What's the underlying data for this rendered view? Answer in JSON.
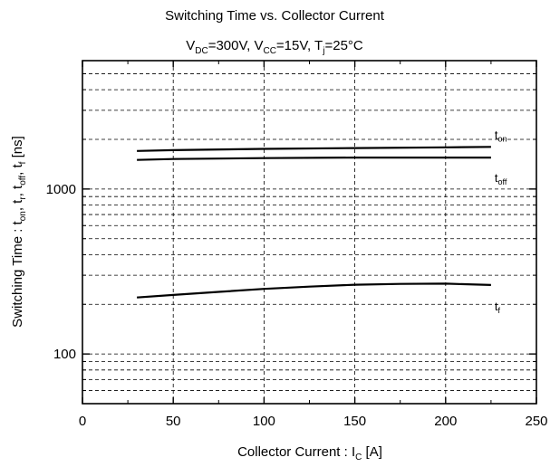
{
  "chart_data": {
    "type": "line",
    "title_lines": [
      [
        {
          "t": "Switching Time vs. Collector Current"
        }
      ],
      [
        {
          "t": "V"
        },
        {
          "t": "DC",
          "sub": true
        },
        {
          "t": "=300V, V"
        },
        {
          "t": "CC",
          "sub": true
        },
        {
          "t": "=15V, T"
        },
        {
          "t": "j",
          "sub": true
        },
        {
          "t": "=25°C"
        }
      ]
    ],
    "xlabel": [
      {
        "t": "Collector Current  :  I"
      },
      {
        "t": "C",
        "sub": true
      },
      {
        "t": "  [A]"
      }
    ],
    "ylabel": [
      {
        "t": "Switching Time :  t"
      },
      {
        "t": "on",
        "sub": true
      },
      {
        "t": ",  t"
      },
      {
        "t": "r",
        "sub": true
      },
      {
        "t": ",  t"
      },
      {
        "t": "off",
        "sub": true
      },
      {
        "t": ",  t"
      },
      {
        "t": "f",
        "sub": true
      },
      {
        "t": "  [ns]"
      }
    ],
    "x_scale": "linear",
    "y_scale": "log",
    "xlim": [
      0,
      250
    ],
    "ylim": [
      50,
      6000
    ],
    "x_ticks": [
      0,
      50,
      100,
      150,
      200,
      250
    ],
    "y_tick_labels": [
      {
        "value": 100,
        "label": "100"
      },
      {
        "value": 1000,
        "label": "1000"
      }
    ],
    "y_minor_gridlines": [
      60,
      70,
      80,
      90,
      100,
      200,
      300,
      400,
      500,
      600,
      700,
      800,
      900,
      1000,
      2000,
      3000,
      4000,
      5000
    ],
    "grid": "dashed",
    "series": [
      {
        "name": [
          {
            "t": "t"
          },
          {
            "t": "on",
            "sub": true
          }
        ],
        "x": [
          30,
          50,
          100,
          150,
          200,
          225
        ],
        "y": [
          1700,
          1720,
          1750,
          1770,
          1790,
          1800
        ]
      },
      {
        "name": [
          {
            "t": "t"
          },
          {
            "t": "off",
            "sub": true
          }
        ],
        "x": [
          30,
          50,
          100,
          150,
          200,
          225
        ],
        "y": [
          1500,
          1520,
          1540,
          1550,
          1550,
          1550
        ]
      },
      {
        "name": [
          {
            "t": "t"
          },
          {
            "t": "f",
            "sub": true
          }
        ],
        "x": [
          30,
          50,
          75,
          100,
          125,
          150,
          175,
          200,
          225
        ],
        "y": [
          220,
          228,
          238,
          248,
          256,
          263,
          266,
          267,
          262
        ]
      }
    ]
  }
}
